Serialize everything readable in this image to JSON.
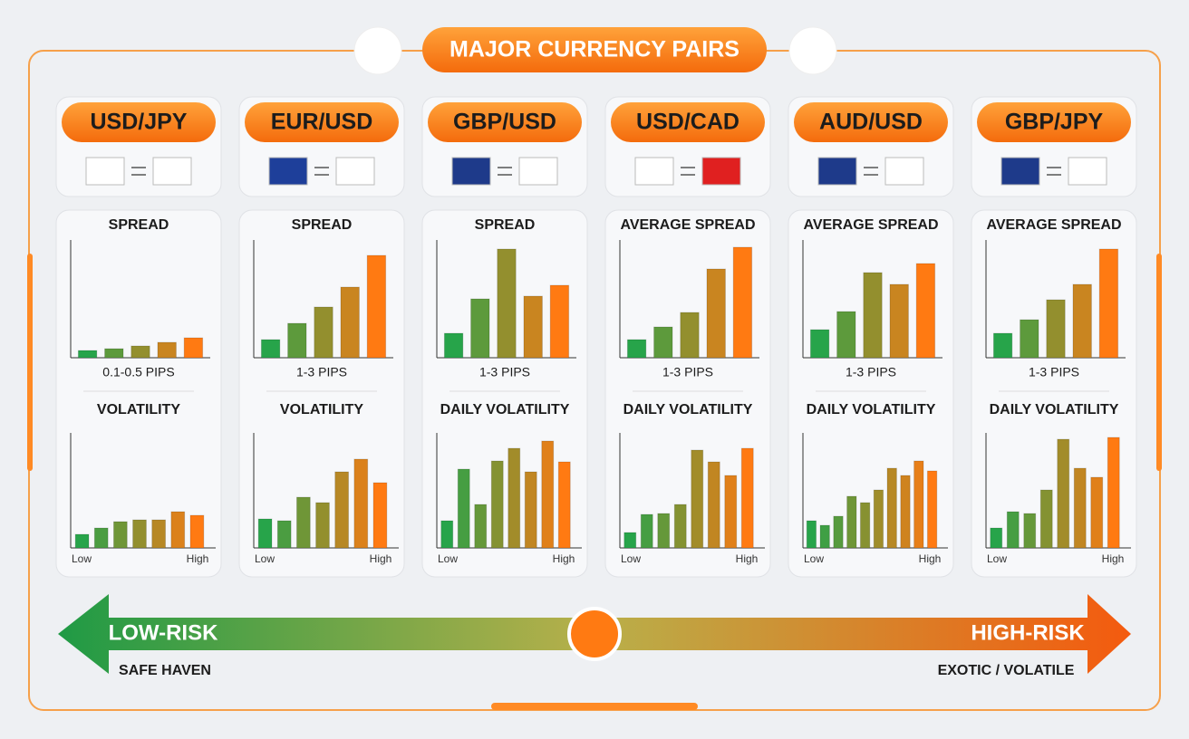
{
  "header": {
    "title": "MAJOR CURRENCY PAIRS"
  },
  "scale_low": "Low",
  "scale_high": "High",
  "bar_colors": [
    "#27a44a",
    "#ff7a12"
  ],
  "spread_ylim": [
    0,
    130
  ],
  "volatility_ylim": [
    0,
    130
  ],
  "pairs": [
    {
      "name": "USD/JPY",
      "spread_title": "SPREAD",
      "spread_caption": "0.1-0.5 PIPS",
      "volatility_title": "VOLATILITY",
      "spread": [
        8,
        10,
        13,
        17,
        22
      ],
      "volatility": [
        15,
        22,
        29,
        31,
        31,
        40,
        36
      ]
    },
    {
      "name": "EUR/USD",
      "spread_title": "SPREAD",
      "spread_caption": "1-3 PIPS",
      "volatility_title": "VOLATILITY",
      "spread": [
        20,
        38,
        56,
        78,
        113
      ],
      "volatility": [
        32,
        30,
        56,
        50,
        84,
        98,
        72
      ]
    },
    {
      "name": "GBP/USD",
      "spread_title": "SPREAD",
      "spread_caption": "1-3 PIPS",
      "volatility_title": "DAILY VOLATILITY",
      "spread": [
        27,
        65,
        120,
        68,
        80
      ],
      "volatility": [
        30,
        87,
        48,
        96,
        110,
        84,
        118,
        95
      ]
    },
    {
      "name": "USD/CAD",
      "spread_title": "AVERAGE SPREAD",
      "spread_caption": "1-3 PIPS",
      "volatility_title": "DAILY VOLATILITY",
      "spread": [
        20,
        34,
        50,
        98,
        122
      ],
      "volatility": [
        17,
        37,
        38,
        48,
        108,
        95,
        80,
        110
      ]
    },
    {
      "name": "AUD/USD",
      "spread_title": "AVERAGE SPREAD",
      "spread_caption": "1-3 PIPS",
      "volatility_title": "DAILY VOLATILITY",
      "spread": [
        31,
        51,
        94,
        81,
        104
      ],
      "volatility": [
        30,
        25,
        35,
        57,
        50,
        64,
        88,
        80,
        96,
        85
      ]
    },
    {
      "name": "GBP/JPY",
      "spread_title": "AVERAGE SPREAD",
      "spread_caption": "1-3 PIPS",
      "volatility_title": "DAILY VOLATILITY",
      "spread": [
        27,
        42,
        64,
        81,
        120
      ],
      "volatility": [
        22,
        40,
        38,
        64,
        120,
        88,
        78,
        122
      ]
    }
  ],
  "risk": {
    "low": "LOW-RISK",
    "high": "HIGH-RISK",
    "low_caption": "SAFE HAVEN",
    "high_caption": "EXOTIC / VOLATILE"
  }
}
